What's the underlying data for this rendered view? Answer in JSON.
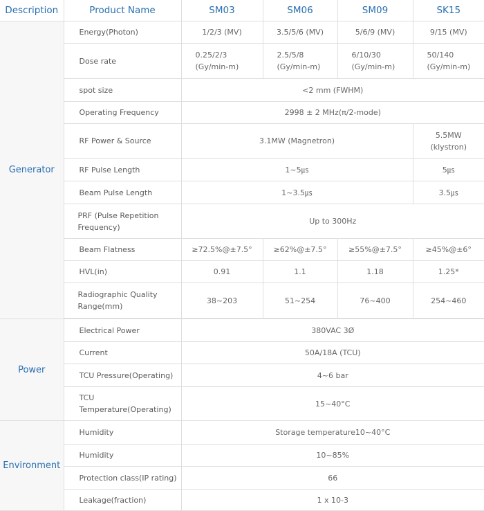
{
  "header": {
    "description": "Description",
    "product_name": "Product Name",
    "models": [
      "SM03",
      "SM06",
      "SM09",
      "SK15"
    ]
  },
  "sections": {
    "generator": "Generator",
    "power": "Power",
    "environment": "Environment"
  },
  "rows": {
    "energy": {
      "label": "Energy(Photon)",
      "values": [
        "1/2/3 (MV)",
        "3.5/5/6 (MV)",
        "5/6/9 (MV)",
        "9/15 (MV)"
      ]
    },
    "dose": {
      "label": "Dose rate",
      "values": [
        "0.25/2/3",
        "2.5/5/8",
        "6/10/30",
        "50/140"
      ],
      "unit": "(Gy/min-m)"
    },
    "spot": {
      "label": "spot size",
      "value": "<2 mm (FWHM)"
    },
    "freq": {
      "label": "Operating Frequency",
      "value": "2998 ± 2 MHz(π/2-mode)"
    },
    "rfpower": {
      "label": "RF Power & Source",
      "value": "3.1MW (Magnetron)",
      "sk15a": "5.5MW",
      "sk15b": "(klystron)"
    },
    "rfpulse": {
      "label": "RF Pulse Length",
      "value": "1~5㎲",
      "sk15": "5㎲"
    },
    "beampulse": {
      "label": "Beam Pulse Length",
      "value": "1~3.5㎲",
      "sk15": "3.5㎲"
    },
    "prf": {
      "label": "PRF (Pulse Repetition Frequency)",
      "value": "Up to 300Hz"
    },
    "flatness": {
      "label": "Beam Flatness",
      "values": [
        "≥72.5%@±7.5°",
        "≥62%@±7.5°",
        "≥55%@±7.5°",
        "≥45%@±6°"
      ]
    },
    "hvl": {
      "label": "HVL(in)",
      "values": [
        "0.91",
        "1.1",
        "1.18",
        "1.25*"
      ]
    },
    "radio": {
      "label": "Radiographic Quality Range(mm)",
      "values": [
        "38~203",
        "51~254",
        "76~400",
        "254~460"
      ]
    },
    "elec": {
      "label": "Electrical Power",
      "value": "380VAC 3Ø"
    },
    "current": {
      "label": "Current",
      "value": "50A/18A (TCU)"
    },
    "tcup": {
      "label": "TCU Pressure(Operating)",
      "value": "4~6 bar"
    },
    "tcut": {
      "label": "TCU Temperature(Operating)",
      "value": "15~40°C"
    },
    "hum1": {
      "label": "Humidity",
      "value": "Storage temperature10~40°C"
    },
    "hum2": {
      "label": "Humidity",
      "value": "10~85%"
    },
    "ip": {
      "label": "Protection class(IP rating)",
      "value": "66"
    },
    "leak": {
      "label": "Leakage(fraction)",
      "value": "1 x 10-3"
    }
  }
}
